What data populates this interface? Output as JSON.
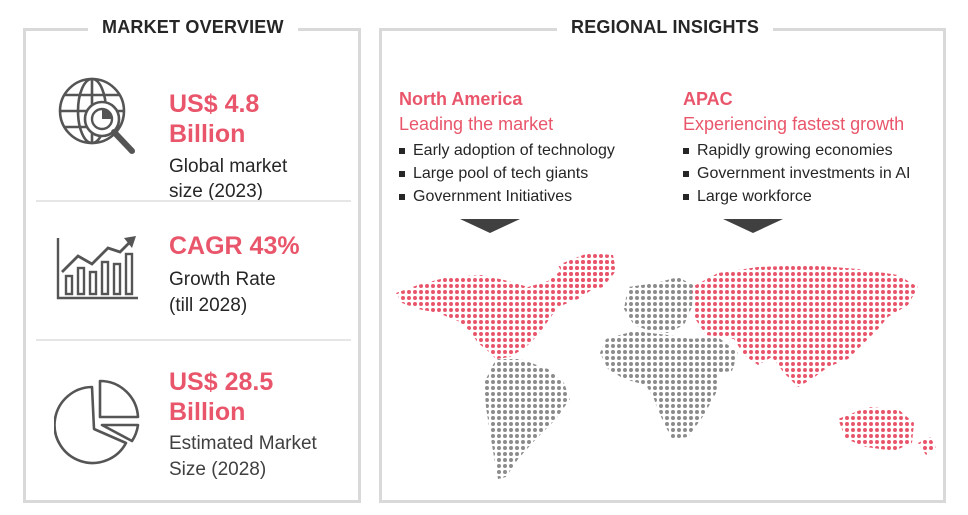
{
  "market_overview": {
    "title": "MARKET OVERVIEW",
    "stats": [
      {
        "icon": "globe-chart-icon",
        "value_line1": "US$ 4.8",
        "value_line2": "Billion",
        "desc_line1": "Global market",
        "desc_line2": "size (2023)"
      },
      {
        "icon": "growth-chart-icon",
        "value_line1": "CAGR 43%",
        "desc_line1": "Growth Rate",
        "desc_line2": "(till 2028)"
      },
      {
        "icon": "pie-chart-icon",
        "value_line1": "US$ 28.5",
        "value_line2": "Billion",
        "desc_line1": "Estimated Market",
        "desc_line2": "Size (2028)"
      }
    ]
  },
  "regional_insights": {
    "title": "REGIONAL INSIGHTS",
    "regions": [
      {
        "name": "North America",
        "subtitle": "Leading the market",
        "bullets": [
          "Early adoption of technology",
          "Large pool of tech giants",
          "Government Initiatives"
        ]
      },
      {
        "name": "APAC",
        "subtitle": "Experiencing fastest growth",
        "bullets": [
          "Rapidly growing economies",
          "Government investments in AI",
          "Large workforce"
        ]
      }
    ]
  },
  "colors": {
    "accent": "#e9566b",
    "text": "#262626",
    "border": "#d9d9d9",
    "map_gray": "#8c8c8c",
    "marker": "#404040"
  }
}
